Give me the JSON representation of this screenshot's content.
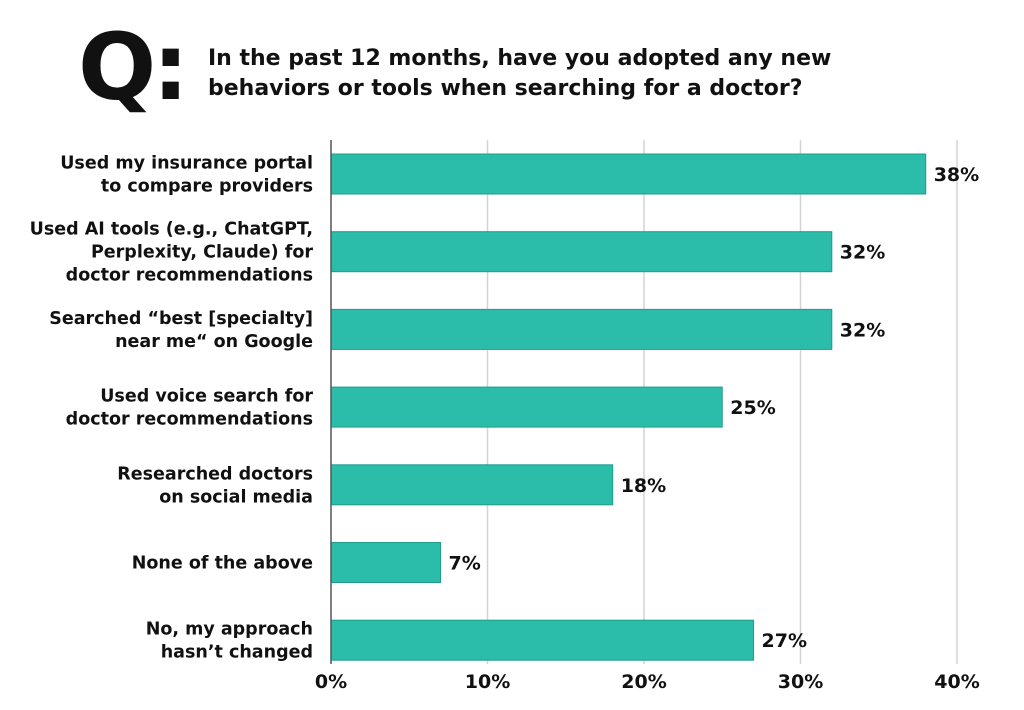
{
  "header": {
    "badge": "Q:",
    "question": "In the past 12 months, have you adopted any new\nbehaviors or tools when searching for a doctor?"
  },
  "colors": {
    "bar": "#2bbdaa",
    "bar_edge": "#1f9c8b",
    "grid": "#d4d4d4",
    "text": "#111111"
  },
  "chart_data": {
    "type": "bar",
    "orientation": "horizontal",
    "title": "In the past 12 months, have you adopted any new behaviors or tools when searching for a doctor?",
    "categories": [
      [
        "Used my insurance portal",
        "to compare providers"
      ],
      [
        "Used AI tools (e.g., ChatGPT,",
        "Perplexity, Claude) for",
        "doctor recommendations"
      ],
      [
        "Searched “best [specialty]",
        "near me“ on Google"
      ],
      [
        "Used voice search for",
        "doctor recommendations"
      ],
      [
        "Researched doctors",
        "on social media"
      ],
      [
        "None of the above"
      ],
      [
        "No, my approach",
        "hasn’t changed"
      ]
    ],
    "values": [
      38,
      32,
      32,
      25,
      18,
      7,
      27
    ],
    "value_labels": [
      "38%",
      "32%",
      "32%",
      "25%",
      "18%",
      "7%",
      "27%"
    ],
    "xlim": [
      0,
      40
    ],
    "xticks": [
      0,
      10,
      20,
      30,
      40
    ],
    "xtick_labels": [
      "0%",
      "10%",
      "20%",
      "30%",
      "40%"
    ],
    "grid": "vertical",
    "legend": "none"
  }
}
